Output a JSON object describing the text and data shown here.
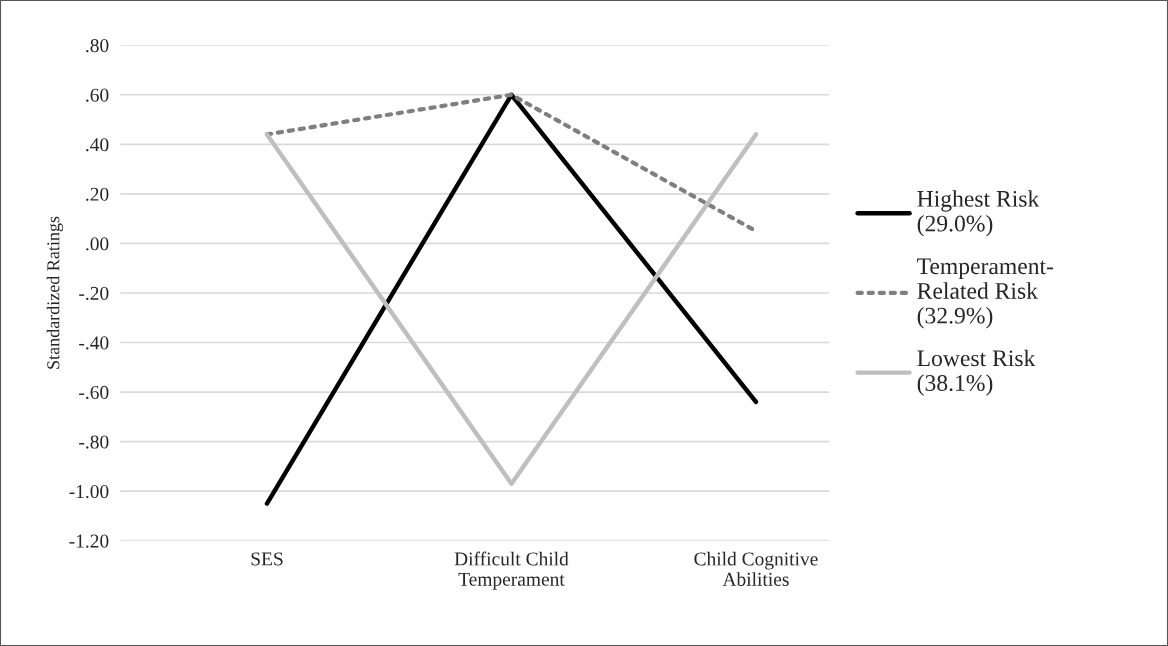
{
  "chart_data": {
    "type": "line",
    "ylabel": "Standardized Ratings",
    "categories": [
      "SES",
      "Difficult Child Temperament",
      "Child Cognitive Abilities"
    ],
    "series": [
      {
        "name": "Highest Risk (29.0%)",
        "color": "#000000",
        "line_style": "solid",
        "values": [
          -1.05,
          0.6,
          -0.64
        ]
      },
      {
        "name": "Temperament-Related Risk (32.9%)",
        "color": "#7f7f7f",
        "line_style": "dotted",
        "values": [
          0.44,
          0.6,
          0.05
        ]
      },
      {
        "name": "Lowest Risk (38.1%)",
        "color": "#bfbfbf",
        "line_style": "solid",
        "values": [
          0.44,
          -0.97,
          0.44
        ]
      }
    ],
    "ylim": [
      -1.2,
      0.8
    ],
    "yticks": [
      {
        "value": -1.2,
        "label": "-1.20"
      },
      {
        "value": -1.0,
        "label": "-1.00"
      },
      {
        "value": -0.8,
        "label": "-.80"
      },
      {
        "value": -0.6,
        "label": "-.60"
      },
      {
        "value": -0.4,
        "label": "-.40"
      },
      {
        "value": -0.2,
        "label": "-.20"
      },
      {
        "value": 0,
        "label": ".00"
      },
      {
        "value": 0.2,
        "label": ".20"
      },
      {
        "value": 0.4,
        "label": ".40"
      },
      {
        "value": 0.6,
        "label": ".60"
      },
      {
        "value": 0.8,
        "label": ".80"
      }
    ],
    "grid": "y",
    "legend": "right",
    "marker": "none"
  }
}
